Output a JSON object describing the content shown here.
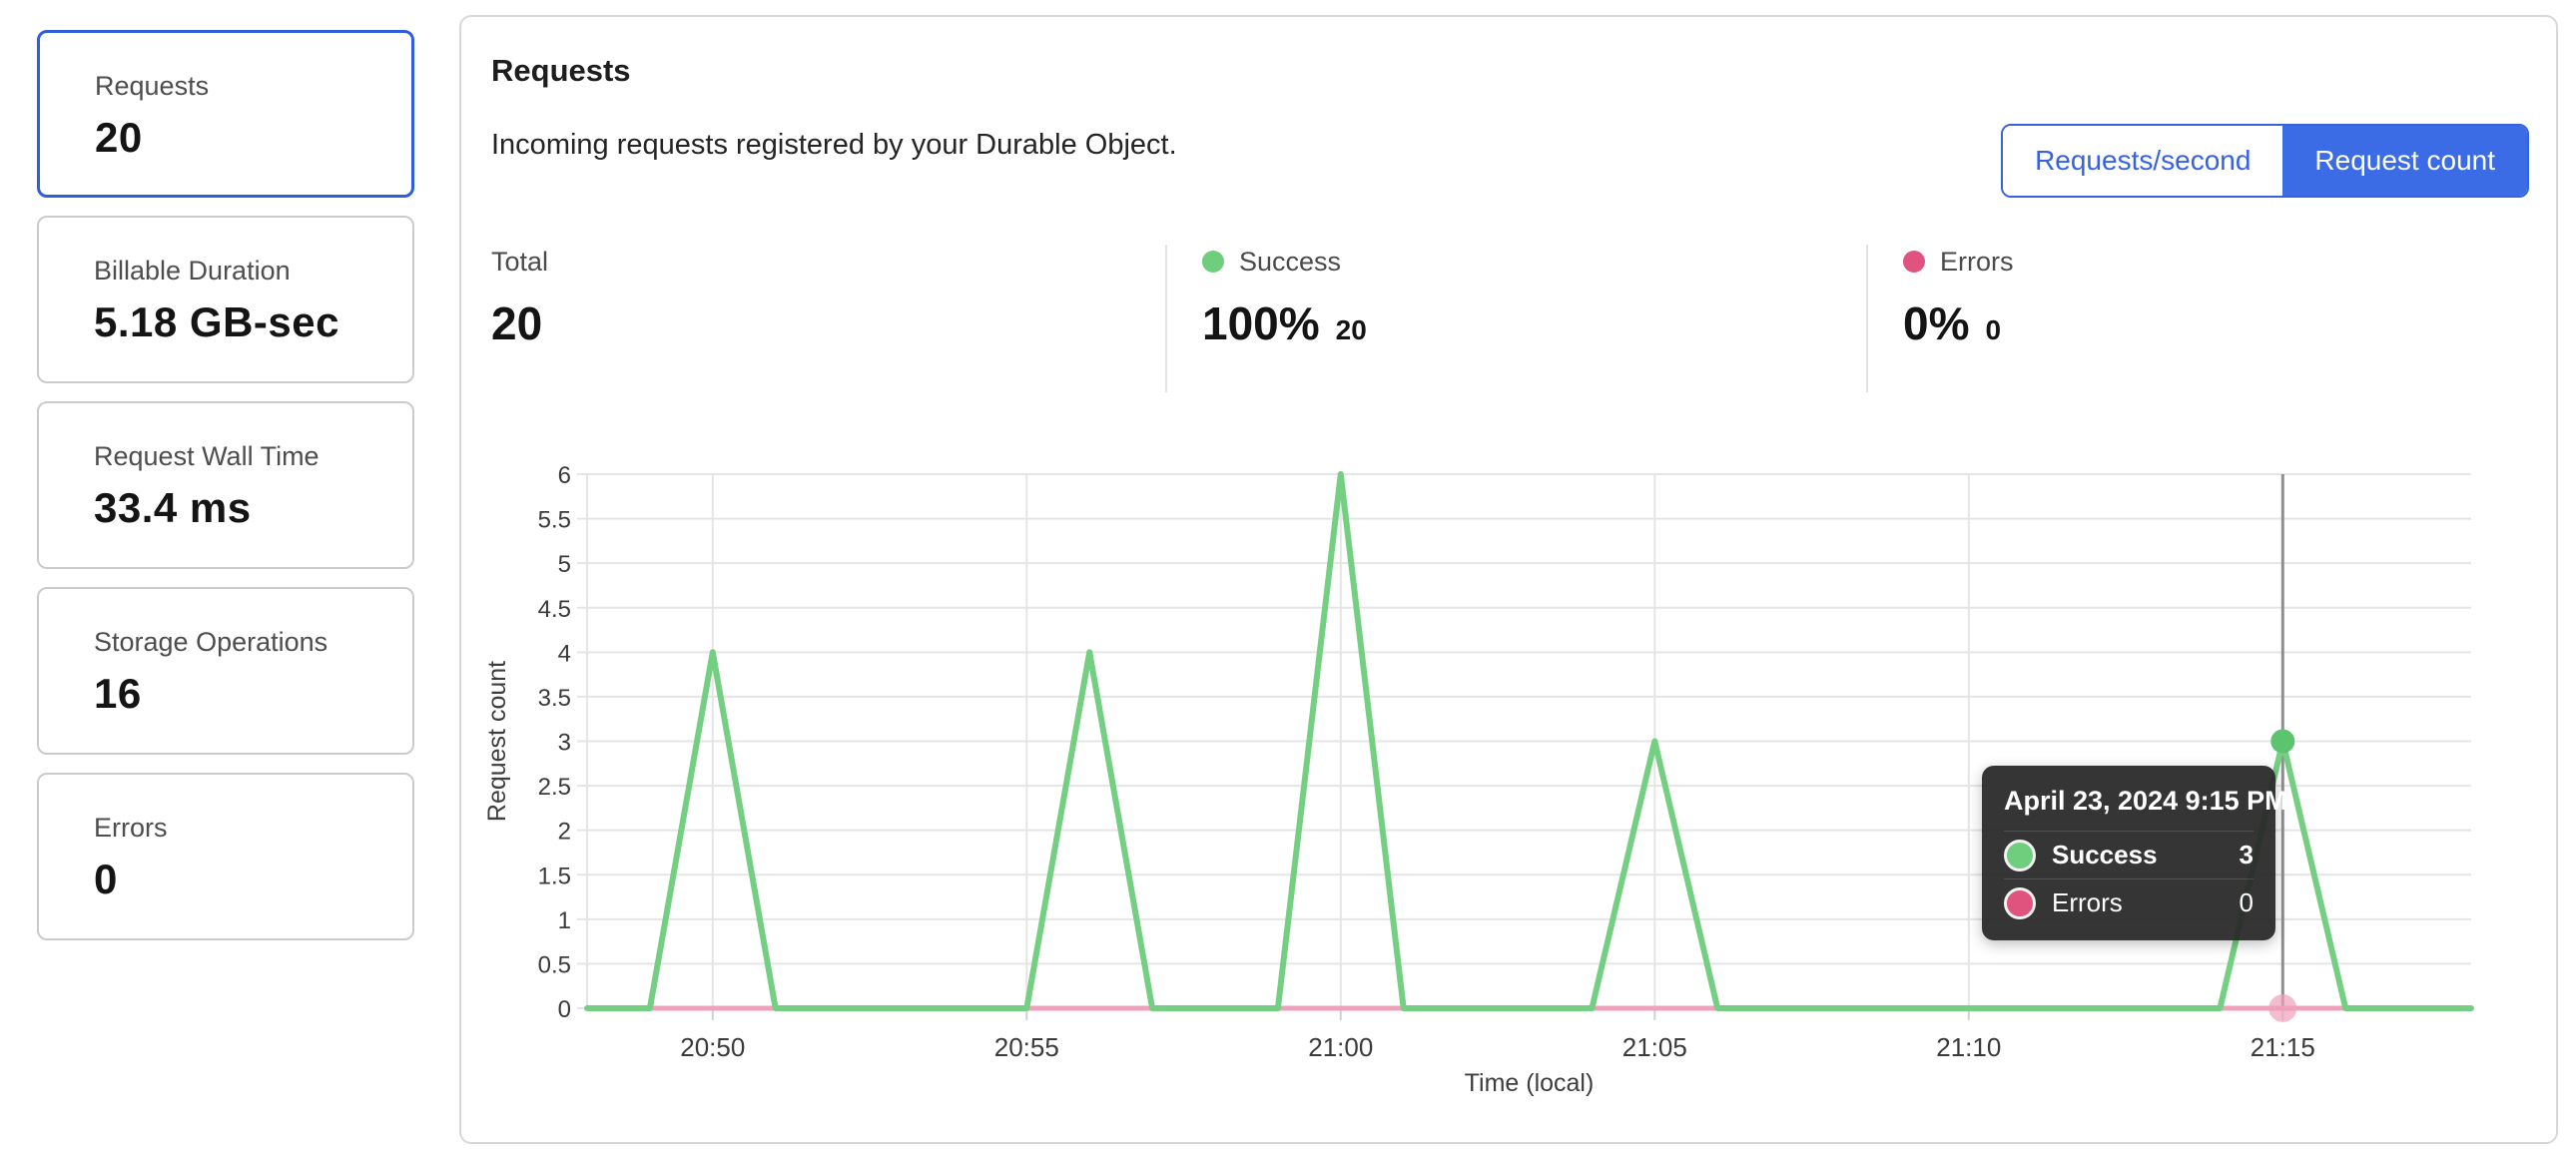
{
  "sidebar": {
    "cards": [
      {
        "label": "Requests",
        "value": "20",
        "selected": true
      },
      {
        "label": "Billable Duration",
        "value": "5.18 GB-sec",
        "selected": false
      },
      {
        "label": "Request Wall Time",
        "value": "33.4 ms",
        "selected": false
      },
      {
        "label": "Storage Operations",
        "value": "16",
        "selected": false
      },
      {
        "label": "Errors",
        "value": "0",
        "selected": false
      }
    ]
  },
  "panel": {
    "title": "Requests",
    "subtitle": "Incoming requests registered by your Durable Object.",
    "toggle": {
      "left": "Requests/second",
      "right": "Request count",
      "active": "Request count"
    },
    "stats": {
      "total": {
        "label": "Total",
        "value": "20"
      },
      "success": {
        "label": "Success",
        "percent": "100%",
        "count": "20",
        "color": "#6fce7e"
      },
      "errors": {
        "label": "Errors",
        "percent": "0%",
        "count": "0",
        "color": "#e0537f"
      }
    }
  },
  "tooltip": {
    "title": "April 23, 2024 9:15 PM",
    "rows": [
      {
        "label": "Success",
        "value": "3",
        "color": "#6fce7e"
      },
      {
        "label": "Errors",
        "value": "0",
        "color": "#d9537d"
      }
    ]
  },
  "colors": {
    "accent_blue": "#3b6ce6",
    "selected_card_border": "#2f5ddd",
    "success_green": "#74cf83",
    "errors_pink_line": "#efa0ba",
    "gridline": "#e5e5e5",
    "crosshair": "#8f8f8f"
  },
  "chart_data": {
    "type": "line",
    "title": "",
    "xlabel": "Time (local)",
    "ylabel": "Request count",
    "ylim": [
      0,
      6
    ],
    "ytick_step": 0.5,
    "grid": true,
    "x": [
      "20:48",
      "20:49",
      "20:50",
      "20:51",
      "20:52",
      "20:53",
      "20:54",
      "20:55",
      "20:56",
      "20:57",
      "20:58",
      "20:59",
      "21:00",
      "21:01",
      "21:02",
      "21:03",
      "21:04",
      "21:05",
      "21:06",
      "21:07",
      "21:08",
      "21:09",
      "21:10",
      "21:11",
      "21:12",
      "21:13",
      "21:14",
      "21:15",
      "21:16",
      "21:17",
      "21:18"
    ],
    "x_tick_labels": [
      "20:50",
      "20:55",
      "21:00",
      "21:05",
      "21:10",
      "21:15"
    ],
    "y_tick_labels": [
      "0",
      "0.5",
      "1",
      "1.5",
      "2",
      "2.5",
      "3",
      "3.5",
      "4",
      "4.5",
      "5",
      "5.5",
      "6"
    ],
    "series": [
      {
        "name": "Success",
        "color": "#74cf83",
        "values": [
          0,
          0,
          4,
          0,
          0,
          0,
          0,
          0,
          4,
          0,
          0,
          0,
          6,
          0,
          0,
          0,
          0,
          3,
          0,
          0,
          0,
          0,
          0,
          0,
          0,
          0,
          0,
          3,
          0,
          0,
          0
        ]
      },
      {
        "name": "Errors",
        "color": "#efa0ba",
        "values": [
          0,
          0,
          0,
          0,
          0,
          0,
          0,
          0,
          0,
          0,
          0,
          0,
          0,
          0,
          0,
          0,
          0,
          0,
          0,
          0,
          0,
          0,
          0,
          0,
          0,
          0,
          0,
          0,
          0,
          0,
          0
        ]
      }
    ],
    "highlight": {
      "x": "21:15",
      "success": 3,
      "errors": 0
    }
  }
}
